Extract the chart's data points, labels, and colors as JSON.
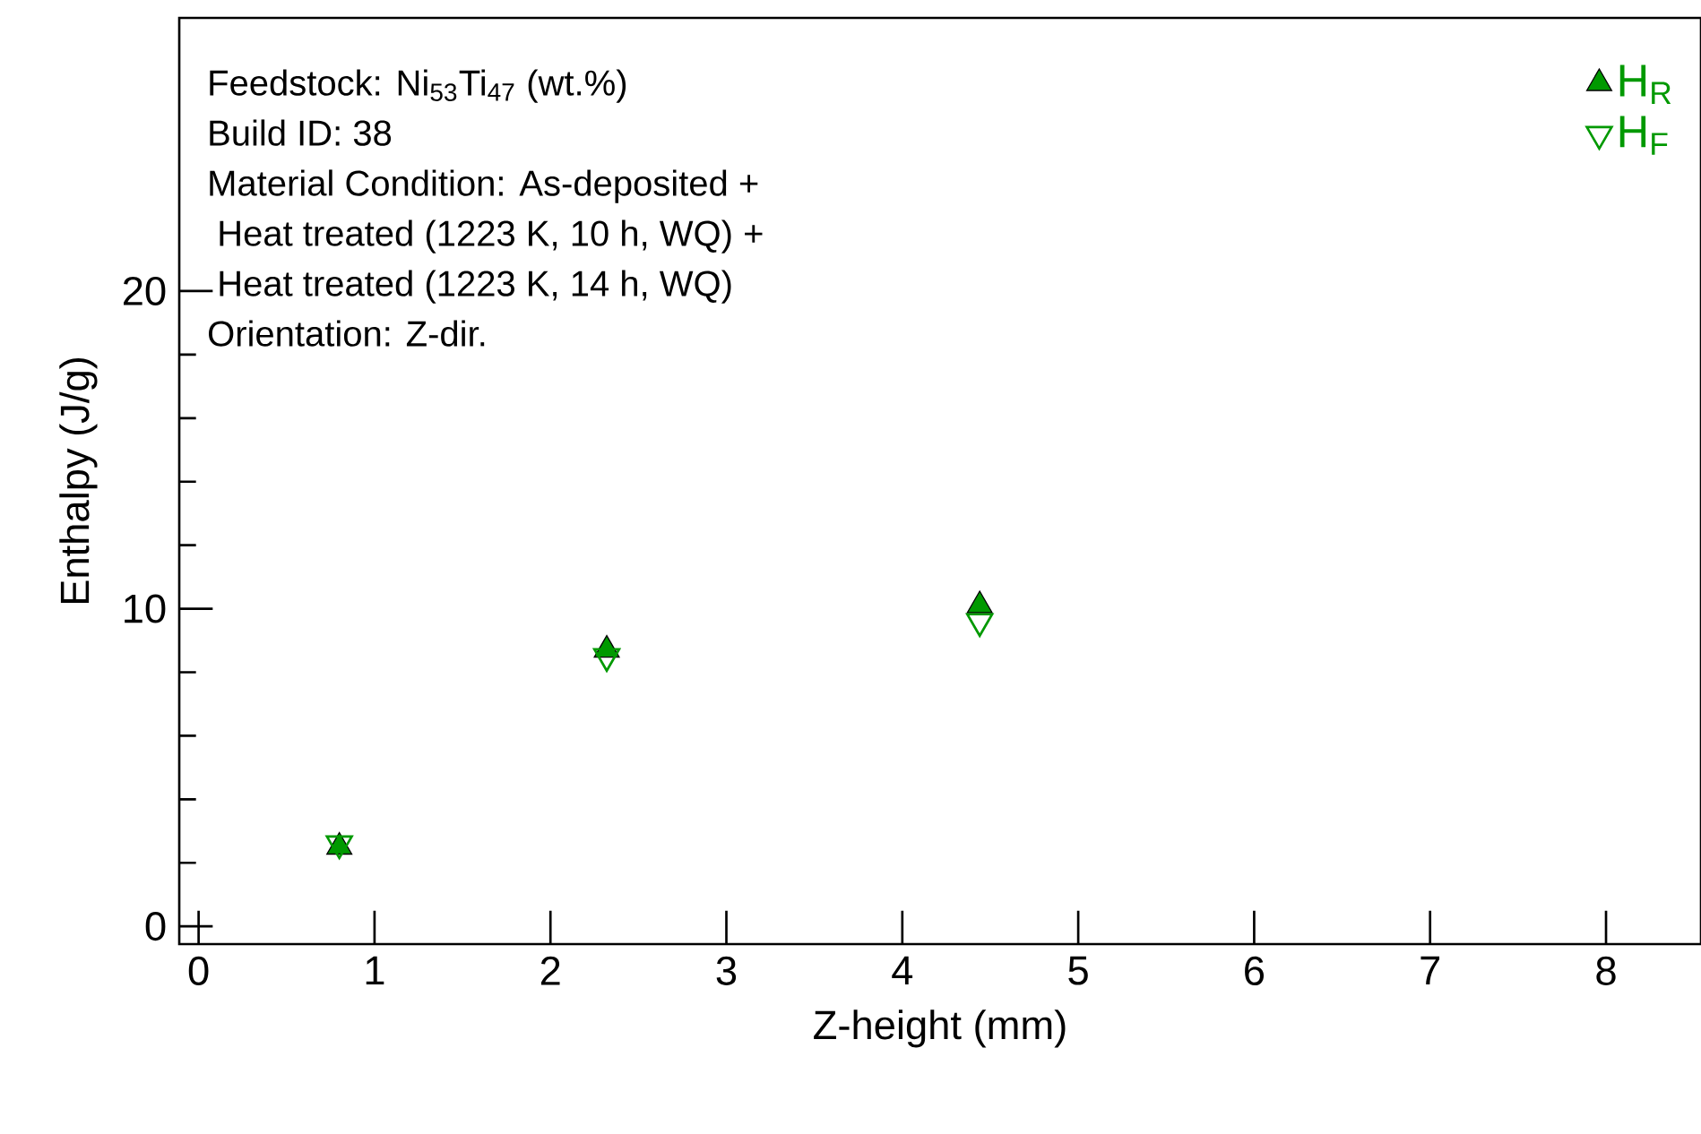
{
  "chart_data": {
    "type": "scatter",
    "xlabel": "Z-height (mm)",
    "ylabel": "Enthalpy (J/g)",
    "x": [
      0.8,
      2.32,
      4.44
    ],
    "series": [
      {
        "name": "H$_{R}$",
        "color": "#009900",
        "values": [
          2.5,
          8.7,
          10.1
        ]
      },
      {
        "name": "H$_{F}$",
        "color": "#009900",
        "values": [
          2.6,
          8.5,
          9.6
        ]
      }
    ],
    "xlim": [
      -0.11,
      8.54
    ],
    "ylim": [
      -0.56,
      28.6
    ],
    "xticks": [
      0,
      1,
      2,
      3,
      4,
      5,
      6,
      7,
      8
    ],
    "yticks": [
      0,
      10,
      20
    ],
    "marker": "triangle",
    "legend": "top right",
    "grid": false,
    "annotations": [
      "Feedstock:  Ni$_{53}$Ti$_{47}$ (wt.%)",
      "Build ID:  38",
      "Material Condition:  As-deposited +",
      " Heat treated  (1223 K, 10 h, WQ) +",
      " Heat treated  (1223 K, 14 h, WQ)",
      "Orientation:  Z-dir."
    ]
  }
}
